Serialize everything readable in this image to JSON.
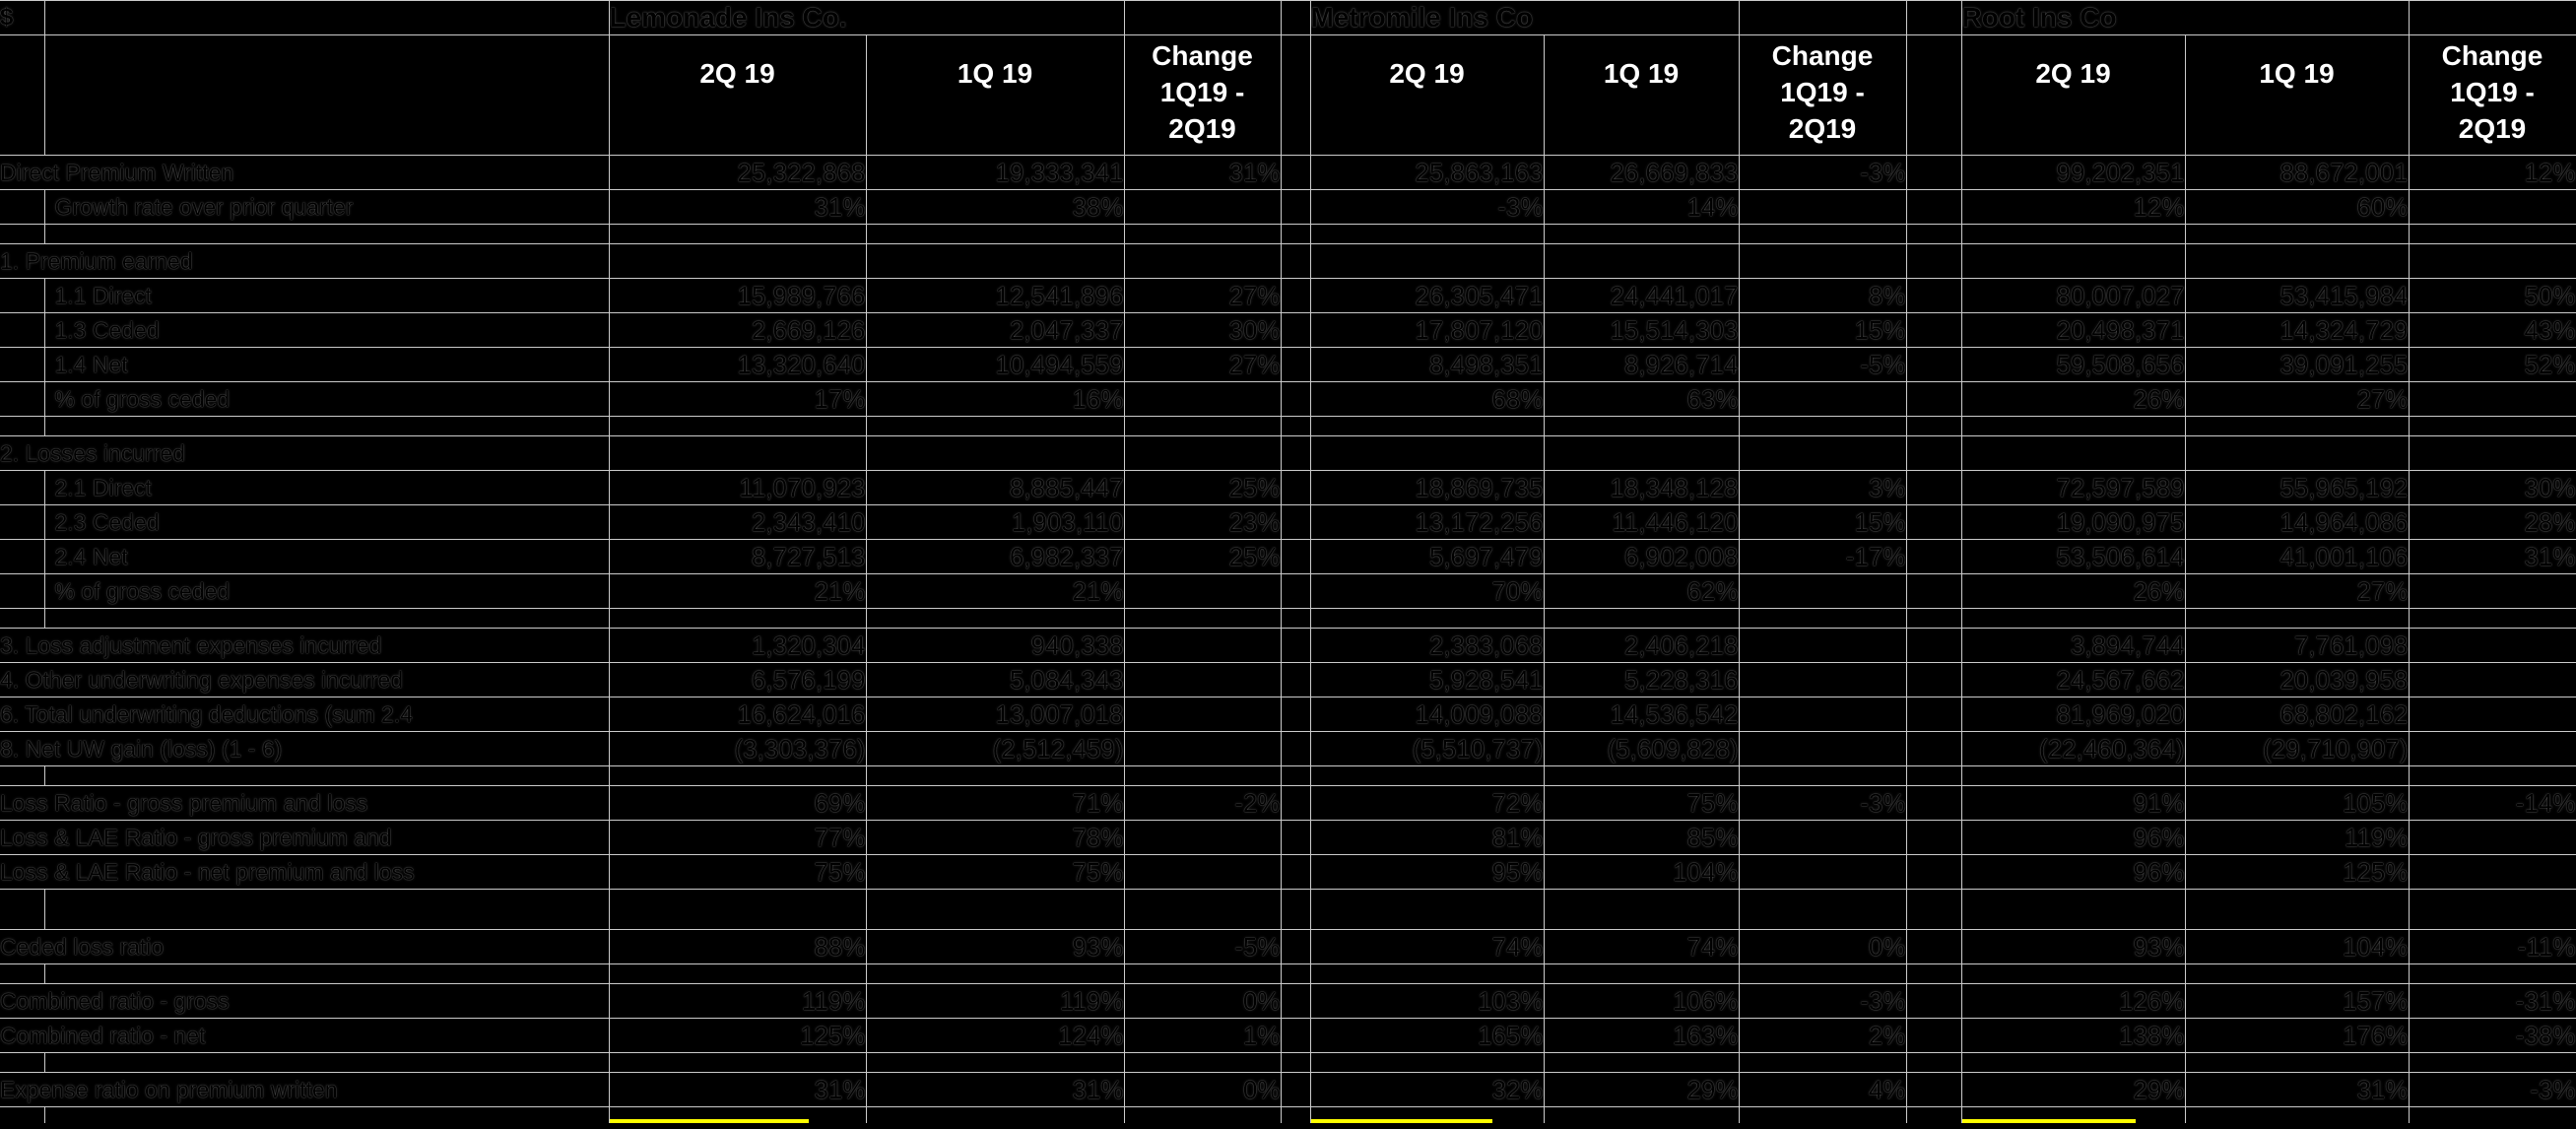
{
  "sheet_title": "Insurer quarterly underwriting comparison",
  "corner_label": "$",
  "groups": [
    {
      "key": "lemonade",
      "name": "Lemonade Ins Co."
    },
    {
      "key": "metromile",
      "name": "Metromile Ins Co"
    },
    {
      "key": "root",
      "name": "Root Ins Co"
    }
  ],
  "header": {
    "col_2q": "2Q 19",
    "col_1q": "1Q 19",
    "change_lines": [
      "Change",
      "1Q19 -",
      "2Q19"
    ]
  },
  "colors": {
    "header_blue": "#4472c4",
    "gridline": "#cbcbcb",
    "background": "#000000",
    "underline_yellow": "#ffff00",
    "header_text": "#ffffff"
  },
  "rows": [
    {
      "type": "row",
      "level": 0,
      "label": "Direct Premium Written",
      "cells": [
        [
          "25,322,868",
          "19,333,341",
          "31%"
        ],
        [
          "25,863,163",
          "26,669,833",
          "-3%"
        ],
        [
          "99,202,351",
          "88,672,001",
          "12%"
        ]
      ]
    },
    {
      "type": "row",
      "level": 1,
      "label": "Growth rate over prior quarter",
      "cells": [
        [
          "31%",
          "38%",
          ""
        ],
        [
          "-3%",
          "14%",
          ""
        ],
        [
          "12%",
          "60%",
          ""
        ]
      ]
    },
    {
      "type": "spacer"
    },
    {
      "type": "row",
      "level": 0,
      "label": "1. Premium earned",
      "cells": [
        [
          "",
          "",
          ""
        ],
        [
          "",
          "",
          ""
        ],
        [
          "",
          "",
          ""
        ]
      ]
    },
    {
      "type": "row",
      "level": 1,
      "label": "1.1 Direct",
      "cells": [
        [
          "15,989,766",
          "12,541,896",
          "27%"
        ],
        [
          "26,305,471",
          "24,441,017",
          "8%"
        ],
        [
          "80,007,027",
          "53,415,984",
          "50%"
        ]
      ]
    },
    {
      "type": "row",
      "level": 1,
      "label": "1.3 Ceded",
      "cells": [
        [
          "2,669,126",
          "2,047,337",
          "30%"
        ],
        [
          "17,807,120",
          "15,514,303",
          "15%"
        ],
        [
          "20,498,371",
          "14,324,729",
          "43%"
        ]
      ]
    },
    {
      "type": "row",
      "level": 1,
      "label": "1.4 Net",
      "cells": [
        [
          "13,320,640",
          "10,494,559",
          "27%"
        ],
        [
          "8,498,351",
          "8,926,714",
          "-5%"
        ],
        [
          "59,508,656",
          "39,091,255",
          "52%"
        ]
      ]
    },
    {
      "type": "row",
      "level": 1,
      "label": "% of gross ceded",
      "cells": [
        [
          "17%",
          "16%",
          ""
        ],
        [
          "68%",
          "63%",
          ""
        ],
        [
          "26%",
          "27%",
          ""
        ]
      ]
    },
    {
      "type": "spacer"
    },
    {
      "type": "row",
      "level": 0,
      "label": "2. Losses incurred",
      "cells": [
        [
          "",
          "",
          ""
        ],
        [
          "",
          "",
          ""
        ],
        [
          "",
          "",
          ""
        ]
      ]
    },
    {
      "type": "row",
      "level": 1,
      "label": "2.1 Direct",
      "cells": [
        [
          "11,070,923",
          "8,885,447",
          "25%"
        ],
        [
          "18,869,735",
          "18,348,128",
          "3%"
        ],
        [
          "72,597,589",
          "55,965,192",
          "30%"
        ]
      ]
    },
    {
      "type": "row",
      "level": 1,
      "label": "2.3 Ceded",
      "cells": [
        [
          "2,343,410",
          "1,903,110",
          "23%"
        ],
        [
          "13,172,256",
          "11,446,120",
          "15%"
        ],
        [
          "19,090,975",
          "14,964,086",
          "28%"
        ]
      ]
    },
    {
      "type": "row",
      "level": 1,
      "label": "2.4 Net",
      "cells": [
        [
          "8,727,513",
          "6,982,337",
          "25%"
        ],
        [
          "5,697,479",
          "6,902,008",
          "-17%"
        ],
        [
          "53,506,614",
          "41,001,106",
          "31%"
        ]
      ]
    },
    {
      "type": "row",
      "level": 1,
      "label": "% of gross ceded",
      "cells": [
        [
          "21%",
          "21%",
          ""
        ],
        [
          "70%",
          "62%",
          ""
        ],
        [
          "26%",
          "27%",
          ""
        ]
      ]
    },
    {
      "type": "spacer"
    },
    {
      "type": "row",
      "level": 0,
      "label": "3. Loss adjustment expenses incurred",
      "cells": [
        [
          "1,320,304",
          "940,338",
          ""
        ],
        [
          "2,383,068",
          "2,406,218",
          ""
        ],
        [
          "3,894,744",
          "7,761,098",
          ""
        ]
      ]
    },
    {
      "type": "row",
      "level": 0,
      "label": "4. Other underwriting expenses incurred",
      "cells": [
        [
          "6,576,199",
          "5,084,343",
          ""
        ],
        [
          "5,928,541",
          "5,228,316",
          ""
        ],
        [
          "24,567,662",
          "20,039,958",
          ""
        ]
      ]
    },
    {
      "type": "row",
      "level": 0,
      "label": "6. Total underwriting deductions (sum 2.4",
      "cells": [
        [
          "16,624,016",
          "13,007,018",
          ""
        ],
        [
          "14,009,088",
          "14,536,542",
          ""
        ],
        [
          "81,969,020",
          "68,802,162",
          ""
        ]
      ]
    },
    {
      "type": "row",
      "level": 0,
      "label": "8. Net UW gain (loss) (1 - 6)",
      "cells": [
        [
          "(3,303,376)",
          "(2,512,459)",
          ""
        ],
        [
          "(5,510,737)",
          "(5,609,828)",
          ""
        ],
        [
          "(22,460,364)",
          "(29,710,907)",
          ""
        ]
      ]
    },
    {
      "type": "spacer"
    },
    {
      "type": "row",
      "level": 0,
      "label": "Loss Ratio - gross premium and loss",
      "cells": [
        [
          "69%",
          "71%",
          "-2%"
        ],
        [
          "72%",
          "75%",
          "-3%"
        ],
        [
          "91%",
          "105%",
          "-14%"
        ]
      ]
    },
    {
      "type": "row",
      "level": 0,
      "label": "Loss & LAE Ratio - gross premium and",
      "cells": [
        [
          "77%",
          "78%",
          ""
        ],
        [
          "81%",
          "85%",
          ""
        ],
        [
          "96%",
          "119%",
          ""
        ]
      ]
    },
    {
      "type": "row",
      "level": 0,
      "label": "Loss & LAE Ratio - net premium and loss",
      "cells": [
        [
          "75%",
          "75%",
          ""
        ],
        [
          "95%",
          "104%",
          ""
        ],
        [
          "96%",
          "125%",
          ""
        ]
      ]
    },
    {
      "type": "spacer_tall"
    },
    {
      "type": "row",
      "level": 0,
      "label": "Ceded loss ratio",
      "cells": [
        [
          "88%",
          "93%",
          "-5%"
        ],
        [
          "74%",
          "74%",
          "0%"
        ],
        [
          "93%",
          "104%",
          "-11%"
        ]
      ]
    },
    {
      "type": "spacer"
    },
    {
      "type": "row",
      "level": 0,
      "label": "Combined ratio - gross",
      "cells": [
        [
          "119%",
          "119%",
          "0%"
        ],
        [
          "103%",
          "106%",
          "-3%"
        ],
        [
          "126%",
          "157%",
          "-31%"
        ]
      ]
    },
    {
      "type": "row",
      "level": 0,
      "label": "Combined ratio - net",
      "cells": [
        [
          "125%",
          "124%",
          "1%"
        ],
        [
          "165%",
          "163%",
          "2%"
        ],
        [
          "138%",
          "176%",
          "-38%"
        ]
      ]
    },
    {
      "type": "spacer"
    },
    {
      "type": "row",
      "level": 0,
      "label": "Expense ratio on premium written",
      "cells": [
        [
          "31%",
          "31%",
          "0%"
        ],
        [
          "32%",
          "29%",
          "4%"
        ],
        [
          "29%",
          "31%",
          "-3%"
        ]
      ]
    },
    {
      "type": "strip"
    }
  ],
  "layout_note_visible_columns": [
    "2Q 19",
    "1Q 19",
    "Change 1Q19 - 2Q19"
  ]
}
